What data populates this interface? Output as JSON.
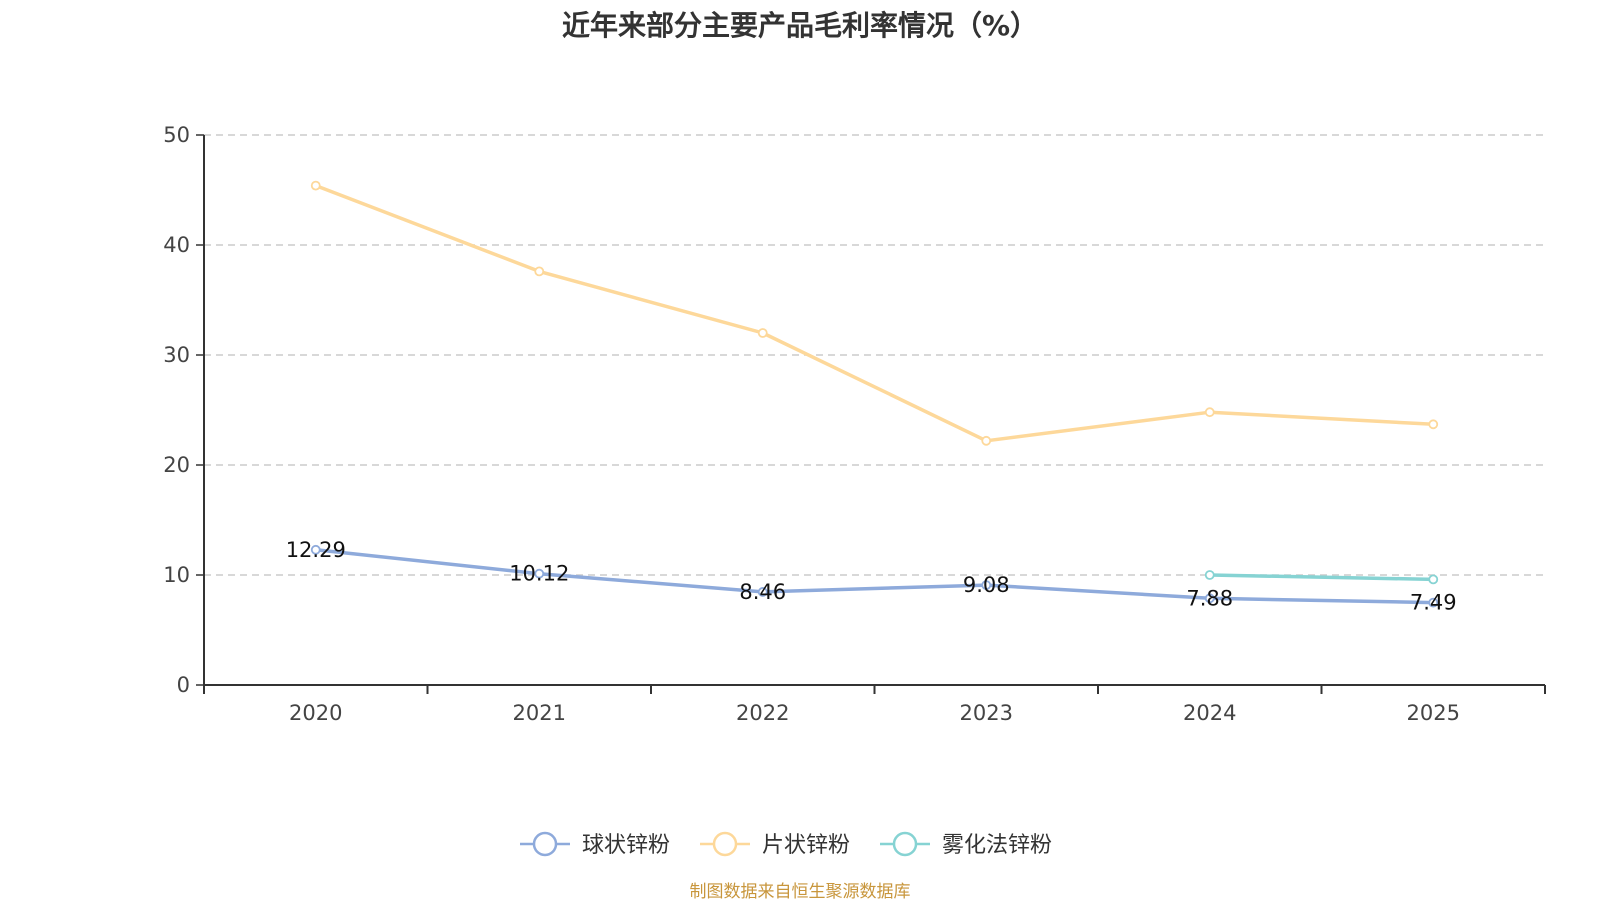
{
  "chart_data": {
    "type": "line",
    "title": "近年来部分主要产品毛利率情况（%）",
    "categories": [
      "2020",
      "2021",
      "2022",
      "2023",
      "2024",
      "2025"
    ],
    "ylim": [
      0,
      50
    ],
    "yticks": [
      0,
      10,
      20,
      30,
      40,
      50
    ],
    "grid": true,
    "legend_position": "bottom",
    "series": [
      {
        "name": "球状锌粉",
        "color": "#8eaadb",
        "values": [
          12.29,
          10.12,
          8.46,
          9.08,
          7.88,
          7.49
        ],
        "show_labels": true
      },
      {
        "name": "片状锌粉",
        "color": "#fdd89a",
        "values": [
          45.4,
          37.6,
          32.0,
          22.2,
          24.8,
          23.7
        ],
        "show_labels": false
      },
      {
        "name": "雾化法锌粉",
        "color": "#86d3d3",
        "values": [
          null,
          null,
          null,
          null,
          10.0,
          9.6
        ],
        "show_labels": false
      }
    ]
  },
  "source": "制图数据来自恒生聚源数据库"
}
